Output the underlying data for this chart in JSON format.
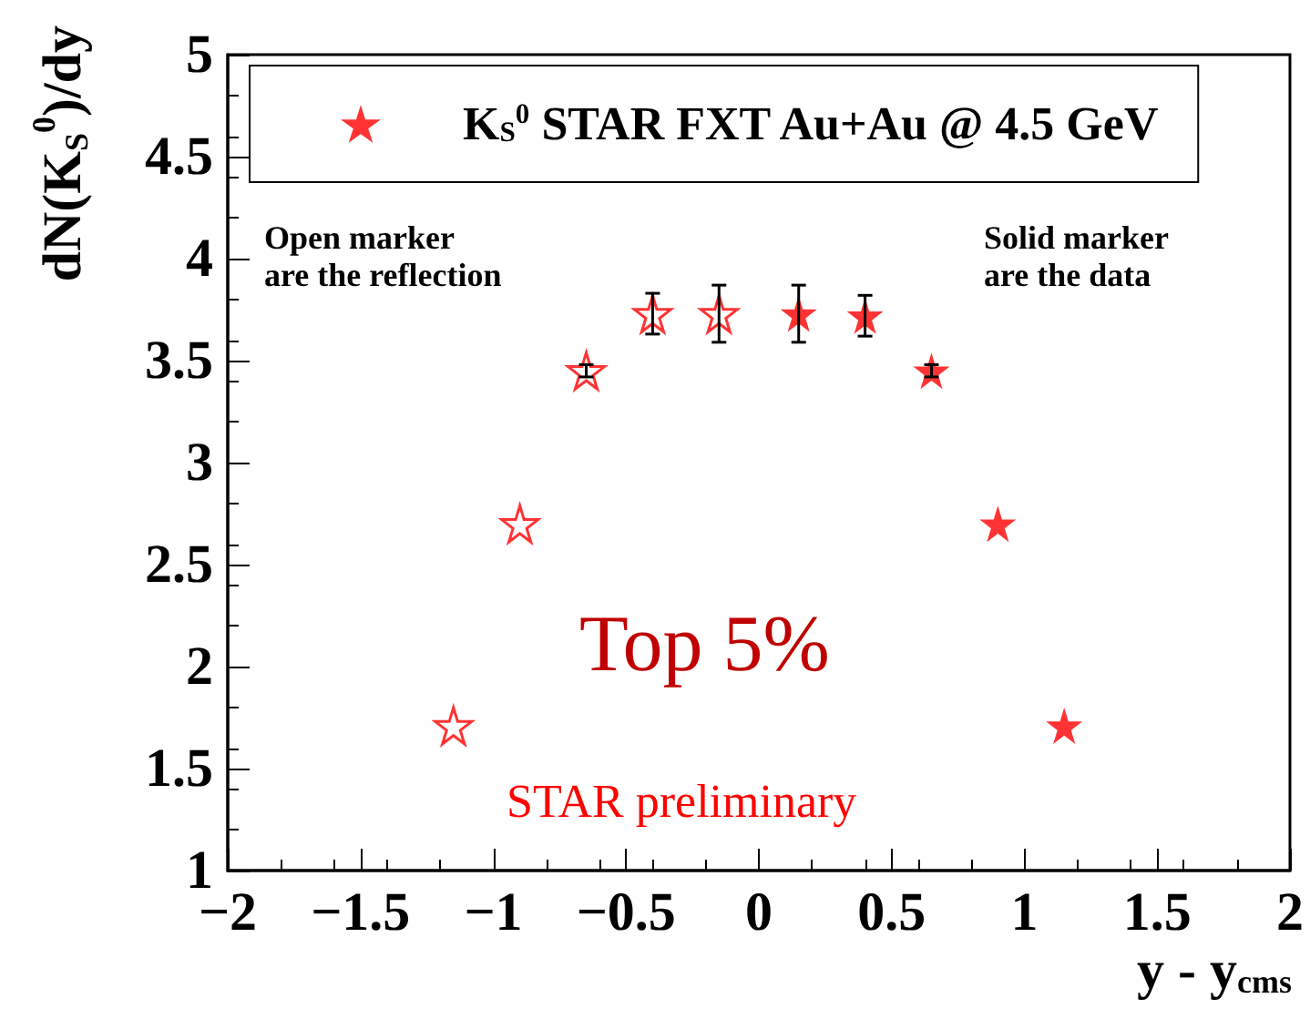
{
  "chart_data": {
    "type": "scatter",
    "xlabel": "y - y$_{cms}$",
    "ylabel": "dN(K$_{S}$$^{0}$)/dy",
    "series": [
      {
        "color": "#ff0000",
        "x": [
          -1.15,
          -0.9,
          -0.65,
          -0.4,
          -0.15
        ],
        "values": [
          1.71,
          2.7,
          3.45,
          3.73,
          3.73
        ],
        "errors": [
          null,
          null,
          0.03,
          0.1,
          0.14
        ]
      },
      {
        "name": "K$_{S}$$^{0}$ STAR FXT Au+Au @ 4.5 GeV",
        "color": "#ff0000",
        "x": [
          0.15,
          0.4,
          0.65,
          0.9,
          1.15
        ],
        "values": [
          3.73,
          3.72,
          3.45,
          2.7,
          1.71
        ],
        "errors": [
          0.14,
          0.1,
          0.03,
          null,
          null
        ]
      }
    ],
    "annotations": [
      "Open marker\nare the reflection",
      "Solid marker\nare the data",
      "Top 5%",
      "STAR preliminary"
    ],
    "xlim": [
      -2,
      2
    ],
    "xticks": [
      -2,
      -1.5,
      -1,
      -0.5,
      0,
      0.5,
      1,
      1.5,
      2
    ],
    "ylim": [
      1,
      5
    ],
    "yticks": [
      1,
      1.5,
      2,
      2.5,
      3,
      3.5,
      4,
      4.5,
      5
    ],
    "marker": "star",
    "legend": "top",
    "grid": false
  }
}
